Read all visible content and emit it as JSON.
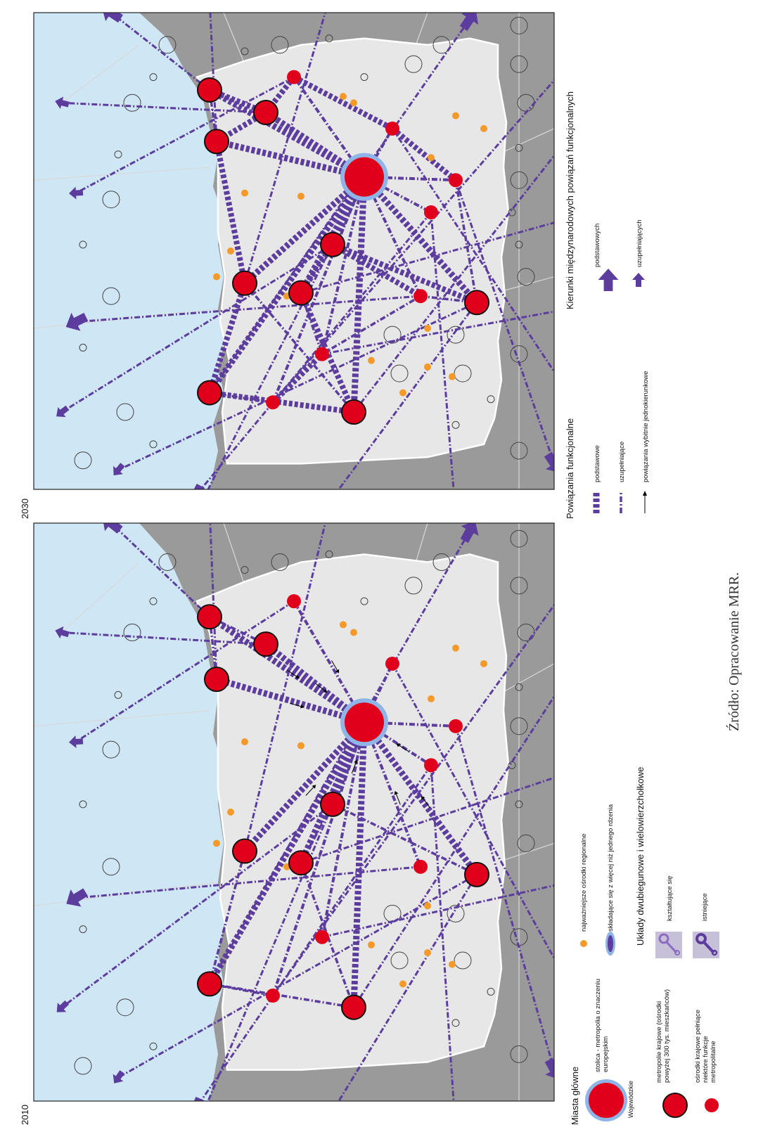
{
  "maps": [
    {
      "year_label": "2010",
      "variant": "2010"
    },
    {
      "year_label": "2030",
      "variant": "2030"
    }
  ],
  "legend": {
    "cities": {
      "title": "Miasta główne",
      "capital": "stolica - metropolia o znaczeniu europejskim",
      "voivodeship_label": "Wojewódzkie",
      "metropolis": "metropolie krajowe (ośrodki powyżej 300 tys. mieszkańców)",
      "national_centre": "ośrodki krajowe pełniące niektóre funkcje metropolitalne"
    },
    "regional": {
      "small_centres": "najważniejsze ośrodki regionalne",
      "multi_core": "składające się z więcej niż jednego rdzenia"
    },
    "bipolar": {
      "title": "Układy dwubiegunowe i wielowierzchołkowe",
      "forming": "kształtujące się",
      "existing": "istniejące"
    },
    "links": {
      "title": "Powiązania funkcjonalne",
      "basic": "podstawowe",
      "supplementary": "uzupełniające",
      "one_way": "powiązania wybitnie jednokierunkowe"
    },
    "directions": {
      "title": "Kierunki międzynarodowych powiązań funkcjonalnych",
      "basic": "podstawowych",
      "supplementary": "uzupełniających"
    }
  },
  "source": "Źródło: Opracowanie MRR.",
  "colors": {
    "sea": "#cfe6f5",
    "land_outside": "#9a9a9a",
    "poland": "#e7e7e7",
    "link": "#5c3d9e",
    "city": "#e0001b",
    "regional": "#f39a2b",
    "halo": "#8fb4e6"
  }
}
